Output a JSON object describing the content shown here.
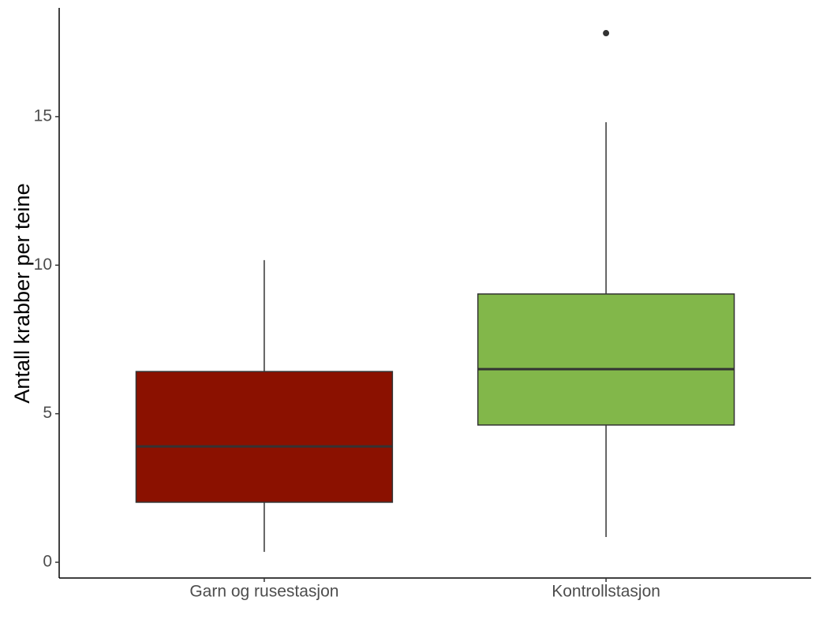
{
  "chart_data": {
    "type": "box",
    "y_label": "Antall krabber per teine",
    "categories": [
      "Garn og rusestasjon",
      "Kontrollstasjon"
    ],
    "boxes": [
      {
        "whisker_low": 0.35,
        "q1": 2.02,
        "median": 3.9,
        "q3": 6.42,
        "whisker_high": 10.17,
        "color": "#8b1100"
      },
      {
        "whisker_low": 0.85,
        "q1": 4.62,
        "median": 6.5,
        "q3": 9.03,
        "whisker_high": 14.81,
        "outliers": [
          17.81
        ],
        "color": "#82b74a"
      }
    ],
    "ylim": [
      -0.53,
      18.66
    ],
    "yticks": [
      0,
      5,
      10,
      15
    ],
    "grid": false
  }
}
